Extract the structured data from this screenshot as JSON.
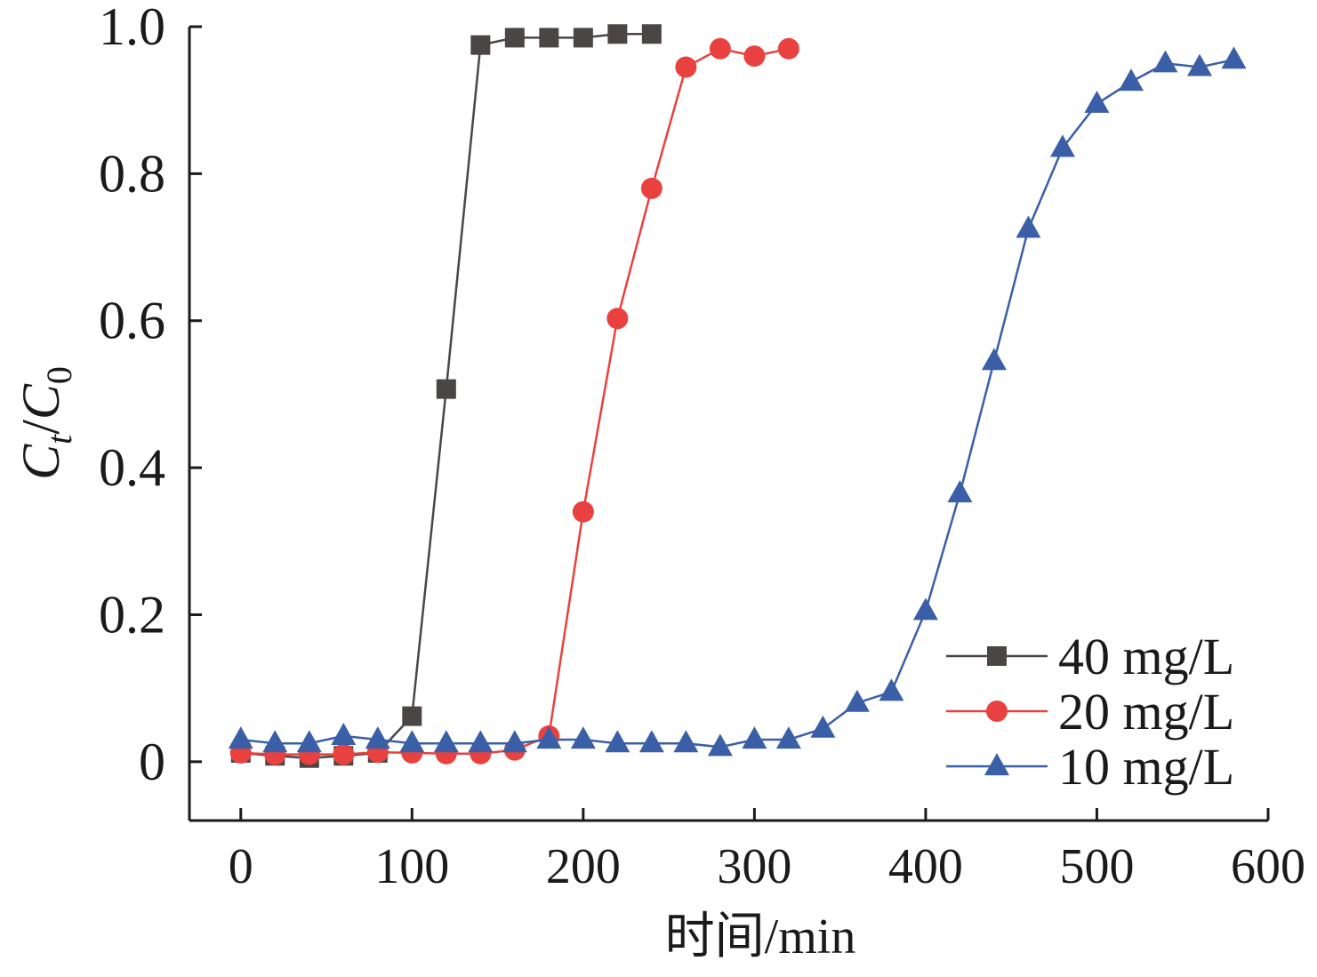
{
  "chart_data": {
    "type": "line",
    "xlabel": "时间/min",
    "ylabel": {
      "base1": "C",
      "sub1": "t",
      "slash": "/",
      "base2": "C",
      "sub2": "0"
    },
    "xlim": [
      -30,
      600
    ],
    "ylim": [
      -0.08,
      1.0
    ],
    "x_ticks": [
      0,
      100,
      200,
      300,
      400,
      500,
      600
    ],
    "x_tick_labels": [
      "0",
      "100",
      "200",
      "300",
      "400",
      "500",
      "600"
    ],
    "y_ticks": [
      0,
      0.2,
      0.4,
      0.6,
      0.8,
      1.0
    ],
    "y_tick_labels": [
      "0",
      "0.2",
      "0.4",
      "0.6",
      "0.8",
      "1.0"
    ],
    "grid": false,
    "legend_position": "bottom-right",
    "series": [
      {
        "name": "40 mg/L",
        "color": "#4a4646",
        "marker": "square",
        "x": [
          0,
          20,
          40,
          60,
          80,
          100,
          120,
          140,
          160,
          180,
          200,
          220,
          240
        ],
        "y": [
          0.012,
          0.008,
          0.005,
          0.008,
          0.012,
          0.062,
          0.507,
          0.975,
          0.985,
          0.985,
          0.985,
          0.99,
          0.99
        ]
      },
      {
        "name": "20 mg/L",
        "color": "#e8413f",
        "marker": "circle",
        "x": [
          0,
          20,
          40,
          60,
          80,
          100,
          120,
          140,
          160,
          180,
          200,
          220,
          240,
          260,
          280,
          300,
          320
        ],
        "y": [
          0.012,
          0.01,
          0.01,
          0.01,
          0.013,
          0.012,
          0.011,
          0.011,
          0.016,
          0.035,
          0.34,
          0.603,
          0.78,
          0.945,
          0.97,
          0.96,
          0.97
        ]
      },
      {
        "name": "10 mg/L",
        "color": "#3a5fa6",
        "marker": "triangle",
        "x": [
          0,
          20,
          40,
          60,
          80,
          100,
          120,
          140,
          160,
          180,
          200,
          220,
          240,
          260,
          280,
          300,
          320,
          340,
          360,
          380,
          400,
          420,
          440,
          460,
          480,
          500,
          520,
          540,
          560,
          580
        ],
        "y": [
          0.03,
          0.025,
          0.025,
          0.035,
          0.03,
          0.025,
          0.025,
          0.025,
          0.025,
          0.03,
          0.03,
          0.025,
          0.025,
          0.025,
          0.02,
          0.03,
          0.03,
          0.045,
          0.08,
          0.095,
          0.205,
          0.365,
          0.545,
          0.725,
          0.835,
          0.895,
          0.925,
          0.95,
          0.945,
          0.955
        ]
      }
    ]
  }
}
